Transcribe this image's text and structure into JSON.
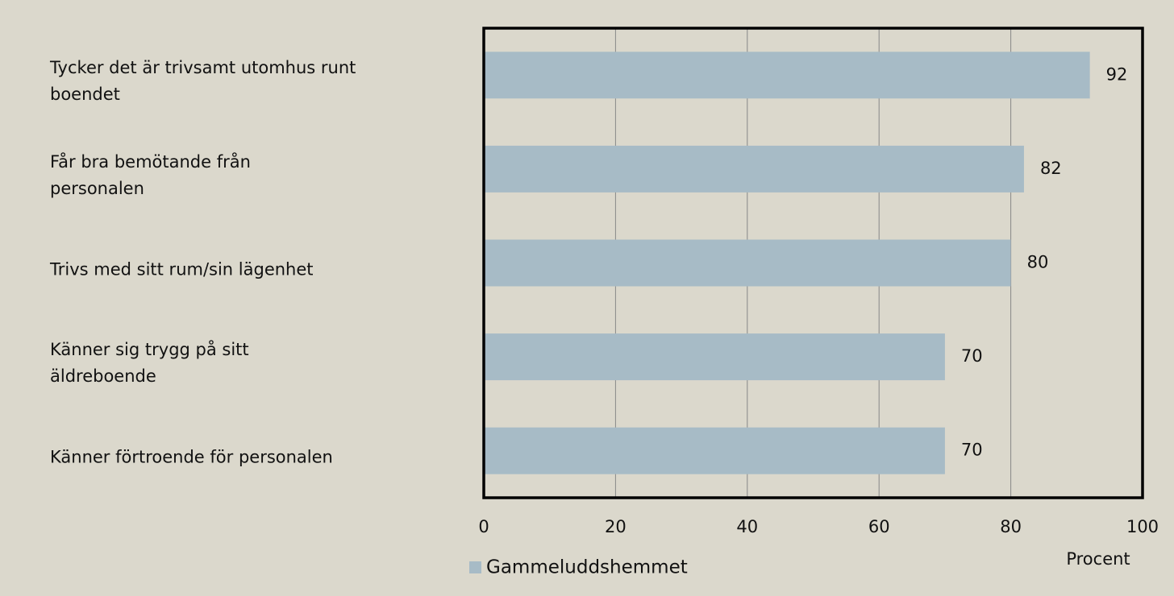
{
  "chart_data": {
    "type": "bar",
    "orientation": "horizontal",
    "categories": [
      "Tycker det är trivsamt utomhus runt\nboendet",
      "Får bra bemötande från\npersonalen",
      "Trivs med sitt rum/sin lägenhet",
      "Känner sig trygg på sitt\näldreboende",
      "Känner förtroende för personalen"
    ],
    "series": [
      {
        "name": "Gammeluddshemmet",
        "color": "#a7bbc6",
        "values": [
          92,
          82,
          80,
          70,
          70
        ]
      }
    ],
    "xlim": [
      0,
      100
    ],
    "xticks": [
      0,
      20,
      40,
      60,
      80,
      100
    ],
    "xlabel": "Procent",
    "grid": true,
    "legend": "bottom"
  }
}
